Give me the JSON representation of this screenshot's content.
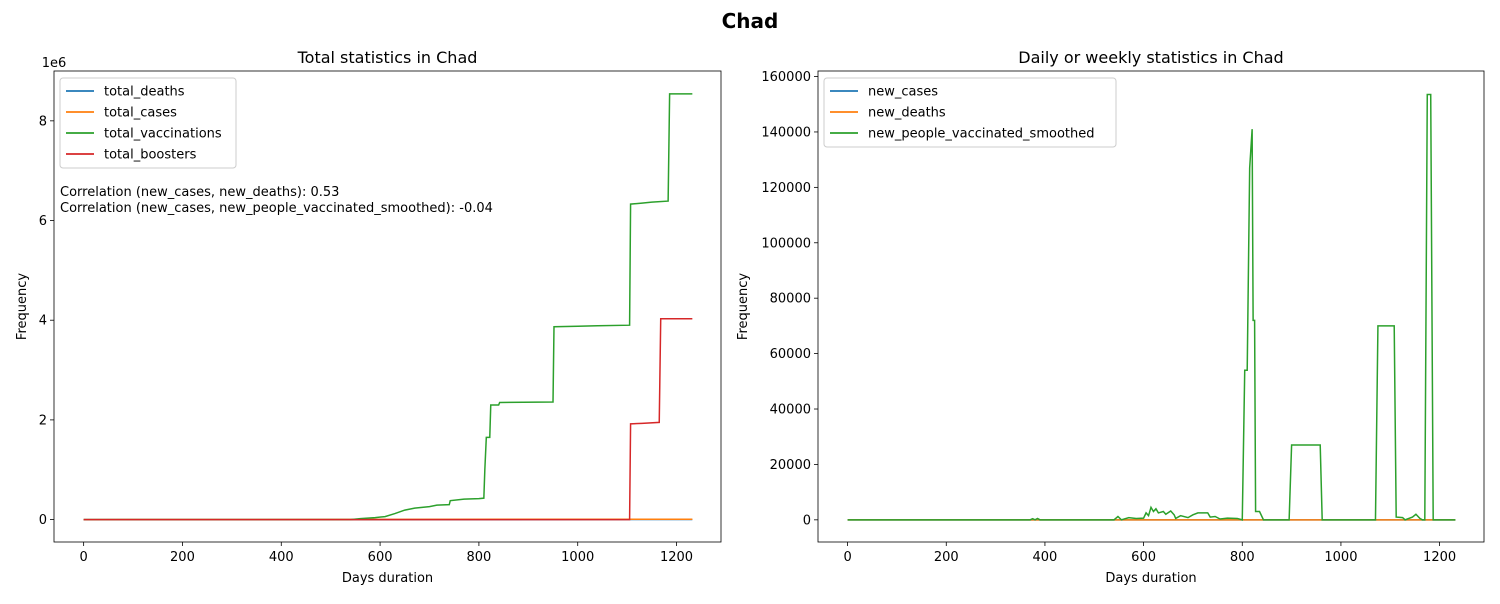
{
  "figure": {
    "suptitle": "Chad"
  },
  "colors": {
    "blue": "#1f77b4",
    "orange": "#ff7f0e",
    "green": "#2ca02c",
    "red": "#d62728"
  },
  "chart_data": [
    {
      "type": "line",
      "title": "Total statistics in Chad",
      "xlabel": "Days duration",
      "ylabel": "Frequency",
      "offset_label": "1e6",
      "xlim": [
        -60,
        1290
      ],
      "ylim": [
        -450000,
        9000000
      ],
      "xticks": [
        0,
        200,
        400,
        600,
        800,
        1000,
        1200
      ],
      "yticks": [
        0,
        2000000,
        4000000,
        6000000,
        8000000
      ],
      "ytick_labels": [
        "0",
        "2",
        "4",
        "6",
        "8"
      ],
      "legend_position": "upper left",
      "grid": false,
      "annotations": [
        "Correlation (new_cases, new_deaths): 0.53",
        "Correlation (new_cases, new_people_vaccinated_smoothed): -0.04"
      ],
      "series": [
        {
          "name": "total_deaths",
          "color": "#1f77b4",
          "points": [
            [
              0,
              0
            ],
            [
              1232,
              194
            ]
          ]
        },
        {
          "name": "total_cases",
          "color": "#ff7f0e",
          "points": [
            [
              0,
              0
            ],
            [
              1232,
              7698
            ]
          ]
        },
        {
          "name": "total_vaccinations",
          "color": "#2ca02c",
          "points": [
            [
              0,
              0
            ],
            [
              540,
              0
            ],
            [
              560,
              20000
            ],
            [
              590,
              40000
            ],
            [
              610,
              60000
            ],
            [
              630,
              120000
            ],
            [
              650,
              190000
            ],
            [
              670,
              230000
            ],
            [
              700,
              260000
            ],
            [
              715,
              290000
            ],
            [
              740,
              300000
            ],
            [
              742,
              380000
            ],
            [
              770,
              410000
            ],
            [
              800,
              420000
            ],
            [
              810,
              430000
            ],
            [
              812,
              1000000
            ],
            [
              815,
              1650000
            ],
            [
              822,
              1650000
            ],
            [
              824,
              2300000
            ],
            [
              840,
              2300000
            ],
            [
              842,
              2350000
            ],
            [
              950,
              2360000
            ],
            [
              952,
              3870000
            ],
            [
              1000,
              3880000
            ],
            [
              1040,
              3890000
            ],
            [
              1105,
              3900000
            ],
            [
              1107,
              6330000
            ],
            [
              1130,
              6350000
            ],
            [
              1150,
              6370000
            ],
            [
              1183,
              6390000
            ],
            [
              1186,
              8540000
            ],
            [
              1232,
              8540000
            ]
          ]
        },
        {
          "name": "total_boosters",
          "color": "#d62728",
          "points": [
            [
              0,
              0
            ],
            [
              1105,
              0
            ],
            [
              1107,
              1920000
            ],
            [
              1130,
              1930000
            ],
            [
              1165,
              1950000
            ],
            [
              1168,
              4030000
            ],
            [
              1232,
              4030000
            ]
          ]
        }
      ]
    },
    {
      "type": "line",
      "title": "Daily or weekly statistics in Chad",
      "xlabel": "Days duration",
      "ylabel": "Frequency",
      "xlim": [
        -60,
        1290
      ],
      "ylim": [
        -8000,
        162000
      ],
      "xticks": [
        0,
        200,
        400,
        600,
        800,
        1000,
        1200
      ],
      "yticks": [
        0,
        20000,
        40000,
        60000,
        80000,
        100000,
        120000,
        140000,
        160000
      ],
      "legend_position": "upper left",
      "grid": false,
      "series": [
        {
          "name": "new_cases",
          "color": "#1f77b4",
          "points": [
            [
              0,
              0
            ],
            [
              1232,
              0
            ]
          ]
        },
        {
          "name": "new_deaths",
          "color": "#ff7f0e",
          "points": [
            [
              0,
              0
            ],
            [
              1232,
              0
            ]
          ]
        },
        {
          "name": "new_people_vaccinated_smoothed",
          "color": "#2ca02c",
          "points": [
            [
              0,
              0
            ],
            [
              370,
              0
            ],
            [
              375,
              400
            ],
            [
              380,
              0
            ],
            [
              385,
              500
            ],
            [
              390,
              0
            ],
            [
              540,
              0
            ],
            [
              548,
              1200
            ],
            [
              555,
              0
            ],
            [
              570,
              800
            ],
            [
              585,
              500
            ],
            [
              600,
              600
            ],
            [
              605,
              2500
            ],
            [
              610,
              1500
            ],
            [
              615,
              4500
            ],
            [
              620,
              3000
            ],
            [
              625,
              4000
            ],
            [
              630,
              2500
            ],
            [
              640,
              3000
            ],
            [
              645,
              2000
            ],
            [
              655,
              3200
            ],
            [
              662,
              1800
            ],
            [
              665,
              500
            ],
            [
              675,
              1500
            ],
            [
              690,
              800
            ],
            [
              700,
              1800
            ],
            [
              710,
              2500
            ],
            [
              730,
              2500
            ],
            [
              735,
              1000
            ],
            [
              745,
              1200
            ],
            [
              755,
              300
            ],
            [
              770,
              600
            ],
            [
              790,
              500
            ],
            [
              800,
              0
            ],
            [
              805,
              54000
            ],
            [
              810,
              54000
            ],
            [
              815,
              127000
            ],
            [
              820,
              141000
            ],
            [
              822,
              72000
            ],
            [
              825,
              72000
            ],
            [
              827,
              3000
            ],
            [
              835,
              3000
            ],
            [
              843,
              0
            ],
            [
              895,
              0
            ],
            [
              900,
              27000
            ],
            [
              958,
              27000
            ],
            [
              962,
              0
            ],
            [
              1070,
              0
            ],
            [
              1075,
              70000
            ],
            [
              1108,
              70000
            ],
            [
              1112,
              1000
            ],
            [
              1125,
              800
            ],
            [
              1130,
              0
            ],
            [
              1145,
              1000
            ],
            [
              1152,
              2000
            ],
            [
              1160,
              500
            ],
            [
              1165,
              0
            ],
            [
              1170,
              0
            ],
            [
              1175,
              153500
            ],
            [
              1182,
              153500
            ],
            [
              1187,
              0
            ],
            [
              1232,
              0
            ]
          ]
        }
      ]
    }
  ]
}
